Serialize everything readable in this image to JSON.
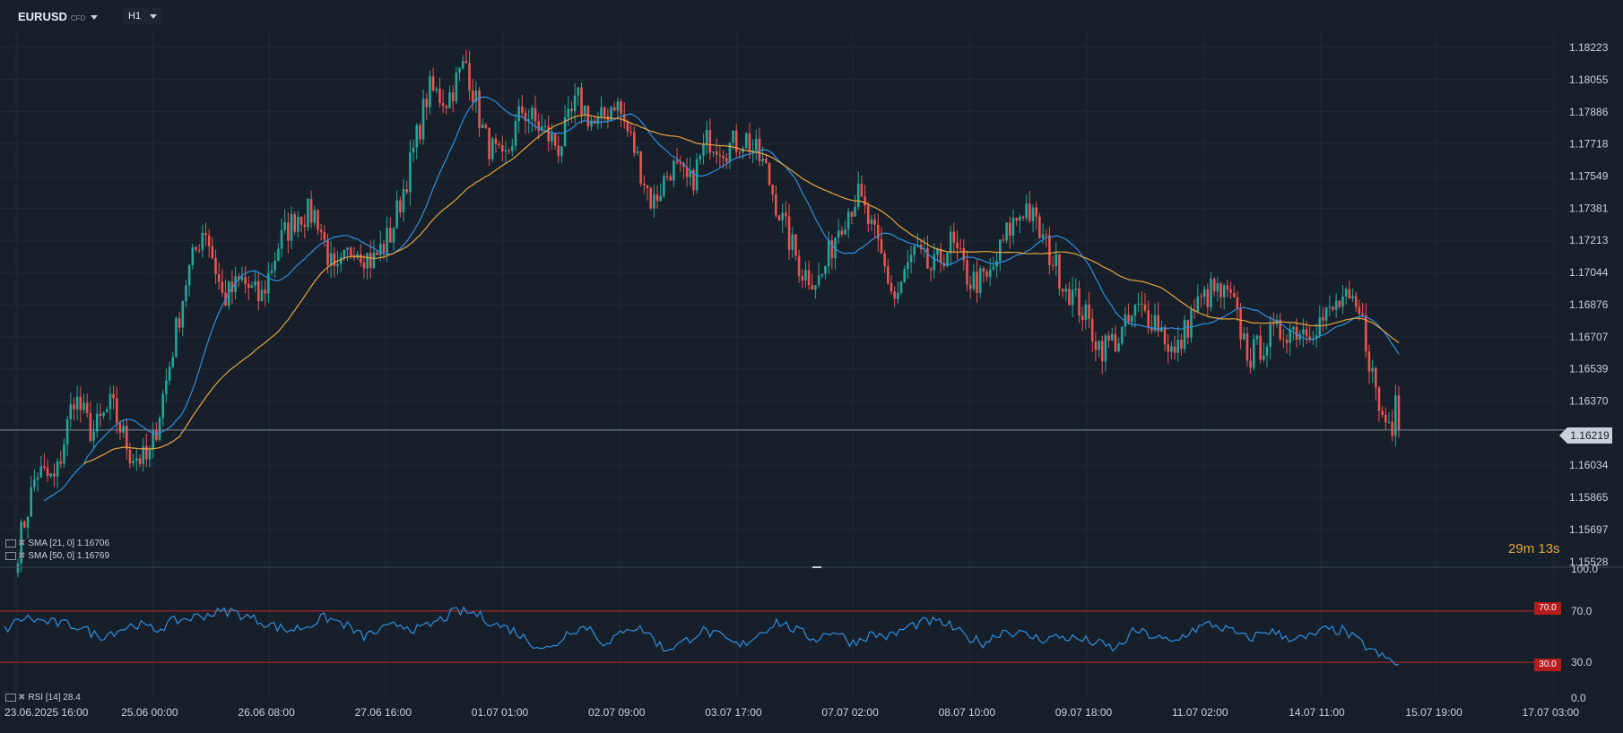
{
  "toolbar": {
    "symbol": "EURUSD",
    "symbol_suffix": "CFD",
    "timeframe": "H1"
  },
  "indicators": {
    "sma21": "SMA [21, 0] 1.16706",
    "sma50": "SMA [50, 0] 1.16769",
    "rsi": "RSI [14] 28.4"
  },
  "countdown": {
    "minutes": "29",
    "m": "m",
    "seconds": "13",
    "s": "s"
  },
  "current_price": "1.16219",
  "rsi_levels": {
    "upper": "70.0",
    "lower": "30.0"
  },
  "colors": {
    "background": "#17202a",
    "grid": "#1e2a35",
    "up": "#26a69a",
    "down": "#ef5350",
    "sma21": "#2f8fe0",
    "sma50": "#e8a33d",
    "rsi": "#2f8fe0",
    "rsi_band": "#c62828"
  },
  "chart_data": [
    {
      "type": "candlestick",
      "title": "EURUSD",
      "ylim": [
        1.15528,
        1.18223
      ],
      "y_ticks": [
        "1.18223",
        "1.18055",
        "1.17886",
        "1.17718",
        "1.17549",
        "1.17381",
        "1.17213",
        "1.17044",
        "1.16876",
        "1.16707",
        "1.16539",
        "1.16370",
        "1.16034",
        "1.15865",
        "1.15697",
        "1.15528"
      ],
      "x_ticks": [
        "23.06.2025 16:00",
        "25.06 00:00",
        "26.06 08:00",
        "27.06 16:00",
        "01.07 01:00",
        "02.07 09:00",
        "03.07 17:00",
        "07.07 02:00",
        "08.07 10:00",
        "09.07 18:00",
        "11.07 02:00",
        "14.07 11:00",
        "15.07 19:00",
        "17.07 03:00"
      ],
      "close_anchors": [
        1.156,
        1.16,
        1.1595,
        1.164,
        1.162,
        1.1635,
        1.161,
        1.1605,
        1.165,
        1.17,
        1.173,
        1.169,
        1.17,
        1.169,
        1.172,
        1.1735,
        1.1735,
        1.17,
        1.172,
        1.171,
        1.1725,
        1.176,
        1.18,
        1.1795,
        1.1815,
        1.1775,
        1.176,
        1.179,
        1.178,
        1.177,
        1.1795,
        1.178,
        1.1795,
        1.177,
        1.174,
        1.176,
        1.175,
        1.1775,
        1.177,
        1.1775,
        1.176,
        1.173,
        1.1705,
        1.17,
        1.173,
        1.1745,
        1.172,
        1.169,
        1.1715,
        1.1705,
        1.172,
        1.17,
        1.17,
        1.1725,
        1.174,
        1.172,
        1.17,
        1.1685,
        1.1665,
        1.167,
        1.1685,
        1.168,
        1.166,
        1.1685,
        1.1695,
        1.169,
        1.166,
        1.167,
        1.1675,
        1.1675,
        1.168,
        1.169,
        1.168,
        1.163,
        1.1622
      ],
      "series": [
        {
          "name": "SMA [21, 0]",
          "last": 1.16706
        },
        {
          "name": "SMA [50, 0]",
          "last": 1.16769
        }
      ],
      "last_price": 1.16219
    },
    {
      "type": "line",
      "title": "RSI [14]",
      "ylim": [
        0,
        100
      ],
      "y_ticks": [
        "100.0",
        "70.0",
        "30.0",
        "0.0"
      ],
      "bands": [
        70,
        30
      ],
      "anchors": [
        55,
        65,
        62,
        60,
        58,
        50,
        55,
        60,
        55,
        62,
        65,
        68,
        70,
        65,
        60,
        55,
        58,
        65,
        60,
        50,
        55,
        60,
        55,
        62,
        70,
        68,
        60,
        55,
        45,
        40,
        55,
        58,
        42,
        58,
        55,
        40,
        45,
        55,
        50,
        42,
        52,
        62,
        55,
        48,
        55,
        45,
        52,
        50,
        58,
        62,
        60,
        50,
        45,
        55,
        52,
        48,
        50,
        48,
        45,
        40,
        55,
        50,
        45,
        55,
        60,
        55,
        48,
        55,
        50,
        48,
        55,
        55,
        45,
        35,
        28.4
      ],
      "last": 28.4
    }
  ]
}
